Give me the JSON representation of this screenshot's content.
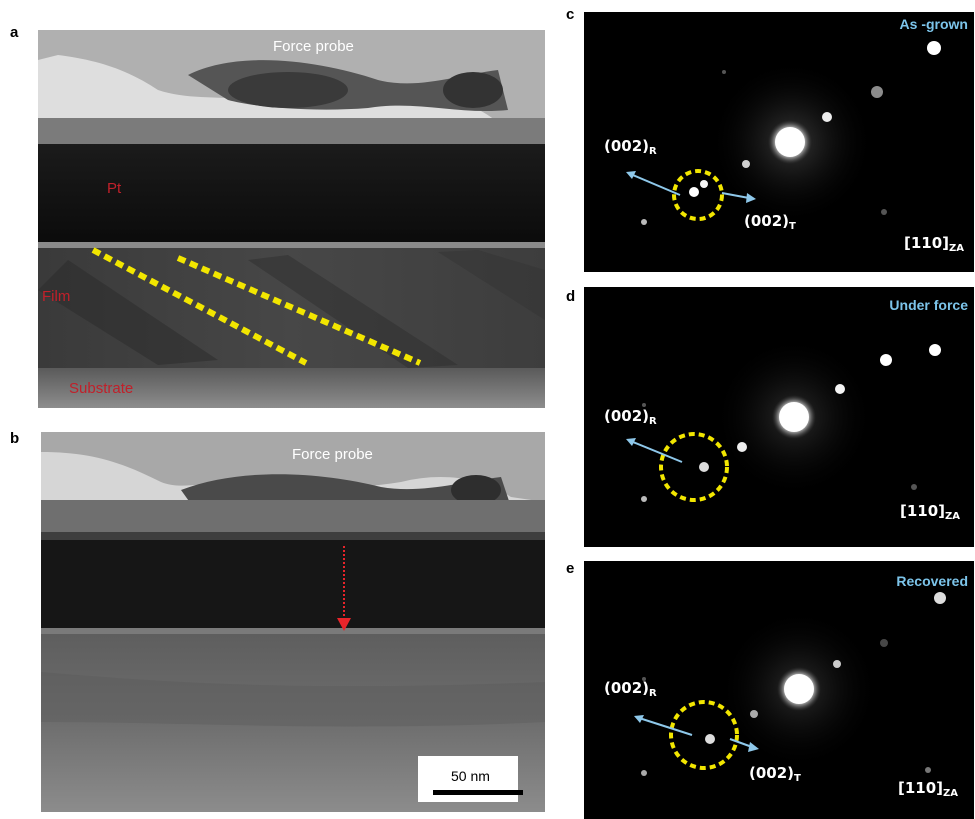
{
  "panels": {
    "a": {
      "letter": "a",
      "probe_label": "Force probe",
      "layers": {
        "pt": "Pt",
        "film": "Film",
        "substrate": "Substrate"
      }
    },
    "b": {
      "letter": "b",
      "probe_label": "Force probe",
      "scalebar": "50 nm"
    },
    "c": {
      "letter": "c",
      "title": "As -grown",
      "reflection_r": {
        "index": "(002)",
        "sub": "R"
      },
      "reflection_t": {
        "index": "(002)",
        "sub": "T"
      },
      "zone_axis": {
        "index": "[110]",
        "sub": "ZA"
      }
    },
    "d": {
      "letter": "d",
      "title": "Under force",
      "reflection_r": {
        "index": "(002)",
        "sub": "R"
      },
      "zone_axis": {
        "index": "[110]",
        "sub": "ZA"
      }
    },
    "e": {
      "letter": "e",
      "title": "Recovered",
      "reflection_r": {
        "index": "(002)",
        "sub": "R"
      },
      "reflection_t": {
        "index": "(002)",
        "sub": "T"
      },
      "zone_axis": {
        "index": "[110]",
        "sub": "ZA"
      }
    }
  },
  "colors": {
    "dash_lines": "#f2e600",
    "arrows": "#8ec8ea",
    "force_arrow": "#e8242a",
    "layer_text": "#c0202a",
    "saed_title": "#7cc4ea"
  }
}
